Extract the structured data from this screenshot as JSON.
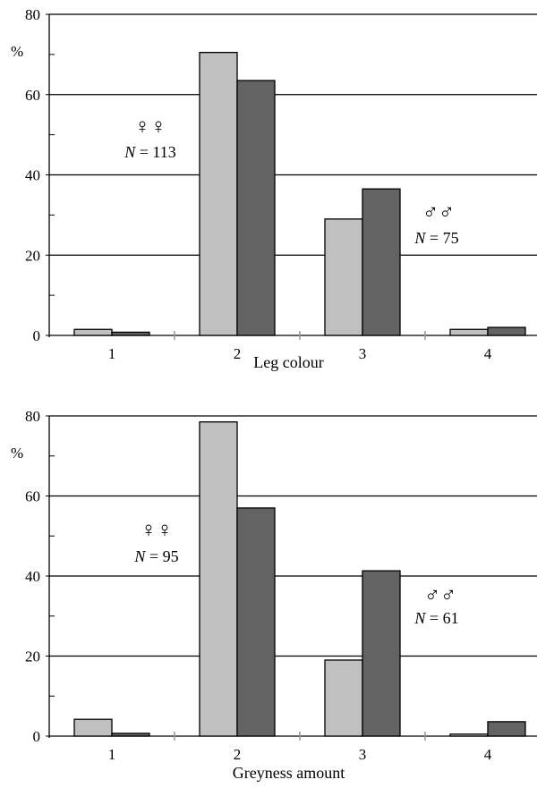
{
  "figure": {
    "colors": {
      "female": "#c0c0c0",
      "male": "#636363",
      "gridline": "#000000",
      "sepTick": "#999999"
    }
  },
  "chart_data": [
    {
      "type": "bar",
      "xlabel": "Leg colour",
      "ylabel": "%",
      "ylim": [
        0,
        80
      ],
      "yticks": [
        0,
        20,
        40,
        60,
        80
      ],
      "grid": true,
      "categories": [
        "1",
        "2",
        "3",
        "4"
      ],
      "series": [
        {
          "key": "female",
          "values": [
            1.5,
            70.5,
            29,
            1.5
          ]
        },
        {
          "key": "male",
          "values": [
            0.8,
            63.5,
            36.5,
            2
          ]
        }
      ],
      "annotations": [
        {
          "key": "female",
          "symbol": "♀♀",
          "n_italic": "N",
          "n_text": " = 113"
        },
        {
          "key": "male",
          "symbol": "♂♂",
          "n_italic": "N",
          "n_text": " = 75"
        }
      ]
    },
    {
      "type": "bar",
      "xlabel": "Greyness amount",
      "ylabel": "%",
      "ylim": [
        0,
        80
      ],
      "yticks": [
        0,
        20,
        40,
        60,
        80
      ],
      "grid": true,
      "categories": [
        "1",
        "2",
        "3",
        "4"
      ],
      "series": [
        {
          "key": "female",
          "values": [
            4.2,
            78.5,
            19,
            0.5
          ]
        },
        {
          "key": "male",
          "values": [
            0.7,
            57,
            41.3,
            3.6
          ]
        }
      ],
      "annotations": [
        {
          "key": "female",
          "symbol": "♀♀",
          "n_italic": "N",
          "n_text": " = 95"
        },
        {
          "key": "male",
          "symbol": "♂♂",
          "n_italic": "N",
          "n_text": " = 61"
        }
      ]
    }
  ]
}
